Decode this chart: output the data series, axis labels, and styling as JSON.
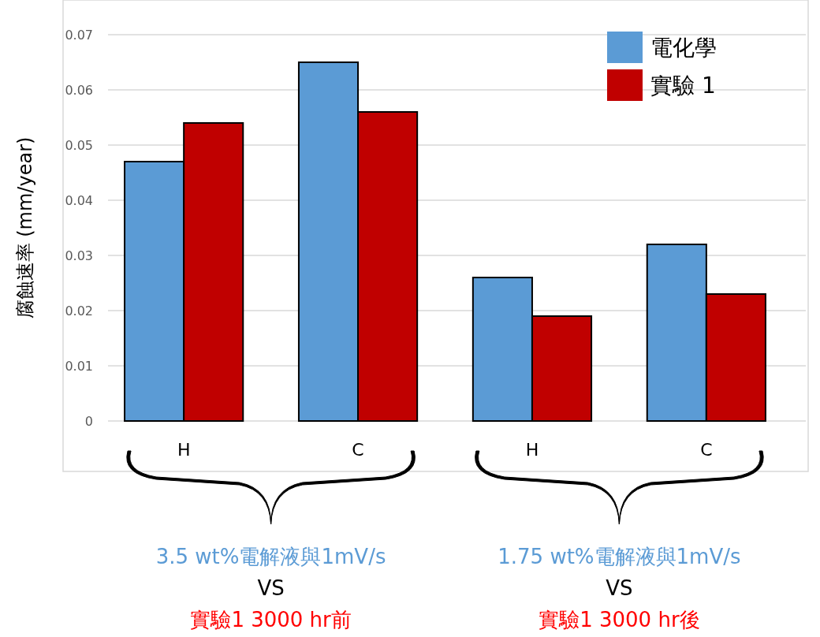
{
  "chart_data": {
    "type": "bar",
    "ylabel": "腐蝕速率 (mm/year)",
    "categories": [
      "H",
      "C",
      "H",
      "C"
    ],
    "series": [
      {
        "name": "電化學",
        "color": "#5b9bd5",
        "values": [
          0.047,
          0.065,
          0.026,
          0.032
        ]
      },
      {
        "name": "實驗 1",
        "color": "#c00000",
        "values": [
          0.054,
          0.056,
          0.019,
          0.023
        ]
      }
    ],
    "ylim": [
      0,
      0.07
    ],
    "yticks": [
      {
        "value": 0,
        "label": "0"
      },
      0.01,
      0.02,
      0.03,
      0.04,
      0.05,
      0.06,
      0.07
    ],
    "grid": "y",
    "legend": "top right",
    "annotations": [
      "3.5 wt%電解液與1mV/s",
      "VS",
      "實驗1 3000 hr前",
      "1.75 wt%電解液與1mV/s",
      "VS",
      "實驗1 3000 hr後"
    ]
  }
}
